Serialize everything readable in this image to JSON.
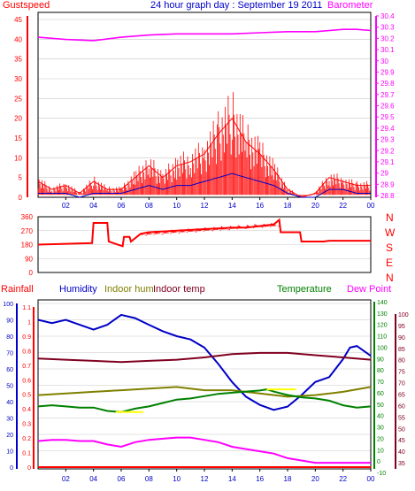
{
  "header": {
    "gust_label": "Gustspeed",
    "title": "24 hour graph day : September 19 2011",
    "baro_label": "Barometer"
  },
  "colors": {
    "gust": "#ff0000",
    "wind": "#0000c8",
    "baro": "#ff00ff",
    "dir": "#ff0000",
    "rain": "#ff0000",
    "humidity": "#0000c8",
    "indoor_hum": "#808000",
    "indoor_temp": "#800020",
    "temperature": "#008000",
    "dew": "#ff00ff",
    "yellow": "#ffff00",
    "grid": "#c8c8c8",
    "axis": "#000000",
    "bg": "#ffffff"
  },
  "compass": [
    "N",
    "W",
    "S",
    "E",
    "N"
  ],
  "bottom_legend": {
    "rainfall": "Rainfall",
    "humidity": "Humidity",
    "indoor_hum": "Indoor hum",
    "indoor_temp": "Indoor temp",
    "temperature": "Temperature",
    "dew_point": "Dew Point"
  },
  "time_ticks": [
    "02",
    "04",
    "06",
    "08",
    "10",
    "12",
    "14",
    "16",
    "18",
    "20",
    "22",
    "00"
  ],
  "chart_data": [
    {
      "type": "line",
      "title": "24 hour graph day : September 19 2011",
      "x_unit": "hours",
      "axes": {
        "left": {
          "label": "Gustspeed",
          "range": [
            0,
            45
          ],
          "ticks": [
            0,
            5,
            10,
            15,
            20,
            25,
            30,
            35,
            40,
            45
          ]
        },
        "right": {
          "label": "Barometer",
          "range": [
            28.8,
            30.4
          ],
          "ticks": [
            "28.8",
            "28.9",
            "29",
            "29.1",
            "29.2",
            "29.3",
            "29.4",
            "29.5",
            "29.6",
            "29.7",
            "29.8",
            "29.9",
            "30",
            "30.1",
            "30.2",
            "30.3",
            "30.4"
          ]
        }
      },
      "series": [
        {
          "name": "Gustspeed",
          "axis": "left",
          "x": [
            0,
            1,
            2,
            3,
            4,
            5,
            6,
            7,
            8,
            9,
            10,
            11,
            12,
            13,
            14,
            15,
            16,
            17,
            18,
            19,
            20,
            21,
            22,
            23,
            24
          ],
          "y": [
            4,
            2,
            3,
            1,
            4,
            2,
            2,
            5,
            8,
            5,
            8,
            9,
            11,
            16,
            20,
            14,
            11,
            7,
            2,
            0,
            1,
            5,
            4,
            3,
            3
          ]
        },
        {
          "name": "Windspeed",
          "axis": "left",
          "x": [
            0,
            1,
            2,
            3,
            4,
            5,
            6,
            7,
            8,
            9,
            10,
            11,
            12,
            13,
            14,
            15,
            16,
            17,
            18,
            19,
            20,
            21,
            22,
            23,
            24
          ],
          "y": [
            1,
            1,
            1,
            0,
            1,
            1,
            1,
            2,
            3,
            2,
            3,
            3,
            4,
            5,
            6,
            5,
            4,
            3,
            1,
            0,
            0,
            2,
            2,
            1,
            1
          ]
        },
        {
          "name": "Barometer",
          "axis": "right",
          "x": [
            0,
            2,
            4,
            6,
            8,
            10,
            12,
            14,
            16,
            18,
            20,
            22,
            23,
            24
          ],
          "y": [
            30.21,
            30.19,
            30.18,
            30.21,
            30.23,
            30.24,
            30.24,
            30.24,
            30.25,
            30.26,
            30.26,
            30.28,
            30.28,
            30.27
          ]
        }
      ]
    },
    {
      "type": "line",
      "title": "",
      "x_unit": "hours",
      "axes": {
        "left": {
          "range": [
            0,
            360
          ],
          "ticks": [
            0,
            90,
            180,
            270,
            360
          ]
        },
        "right": {
          "ticks": [
            "N",
            "W",
            "S",
            "E",
            "N"
          ]
        }
      },
      "series": [
        {
          "name": "Wind direction",
          "x": [
            0,
            2,
            3.9,
            4,
            5,
            5.1,
            6.1,
            6.2,
            6.6,
            6.7,
            7.4,
            8,
            10,
            12,
            14,
            15,
            16,
            17,
            17.4,
            17.5,
            18.9,
            19,
            20.5,
            20.6,
            21,
            24
          ],
          "y": [
            180,
            185,
            190,
            320,
            320,
            200,
            170,
            230,
            230,
            200,
            250,
            260,
            270,
            280,
            290,
            290,
            300,
            310,
            340,
            260,
            260,
            200,
            200,
            200,
            205,
            205
          ]
        }
      ]
    },
    {
      "type": "line",
      "title": "",
      "x_unit": "hours",
      "axes": {
        "rainfall": {
          "label": "Rainfall",
          "range": [
            0,
            1.1
          ],
          "ticks": [
            "0",
            "0.1",
            "0.2",
            "0.3",
            "0.4",
            "0.5",
            "0.6",
            "0.7",
            "0.8",
            "0.9",
            "1",
            "1.1"
          ]
        },
        "humidity": {
          "label": "Humidity",
          "range": [
            0,
            100
          ],
          "ticks": [
            0,
            10,
            20,
            30,
            40,
            50,
            60,
            70,
            80,
            90,
            100
          ]
        },
        "temperature": {
          "label": "Temperature",
          "range": [
            -10,
            140
          ],
          "ticks": [
            -10,
            0,
            10,
            20,
            30,
            40,
            50,
            60,
            70,
            80,
            90,
            100,
            110,
            120,
            130,
            140
          ]
        },
        "dew_point": {
          "label": "Dew Point",
          "range": [
            30,
            100
          ],
          "ticks": [
            35,
            40,
            45,
            50,
            55,
            60,
            65,
            70,
            75,
            80,
            85,
            90,
            95,
            100
          ]
        }
      },
      "series": [
        {
          "name": "Rainfall",
          "axis": "rainfall",
          "x": [
            0,
            24
          ],
          "y": [
            0,
            0
          ]
        },
        {
          "name": "Humidity",
          "axis": "humidity",
          "x": [
            0,
            1,
            2,
            3,
            4,
            5,
            6,
            7,
            8,
            9,
            10,
            11,
            12,
            13,
            14,
            15,
            16,
            17,
            18,
            19,
            20,
            21,
            22,
            22.5,
            23,
            24
          ],
          "y": [
            90,
            88,
            90,
            87,
            84,
            87,
            93,
            91,
            87,
            83,
            80,
            78,
            73,
            63,
            52,
            43,
            38,
            35,
            37,
            44,
            52,
            55,
            66,
            73,
            74,
            68
          ]
        },
        {
          "name": "Indoor hum",
          "axis": "humidity",
          "x": [
            0,
            2,
            4,
            6,
            8,
            10,
            12,
            14,
            16,
            18,
            20,
            22,
            24
          ],
          "y": [
            44,
            45,
            46,
            47,
            48,
            49,
            47,
            47,
            45,
            43,
            44,
            46,
            49
          ]
        },
        {
          "name": "Indoor temp",
          "axis": "temperature",
          "x": [
            0,
            2,
            4,
            6,
            8,
            10,
            12,
            14,
            16,
            18,
            20,
            22,
            24
          ],
          "y": [
            90,
            89,
            88,
            87,
            88,
            89,
            91,
            94,
            95,
            95,
            93,
            91,
            89
          ]
        },
        {
          "name": "Temperature",
          "axis": "temperature",
          "x": [
            0,
            1,
            2,
            3,
            4,
            5,
            6,
            7,
            8,
            9,
            10,
            11,
            12,
            13,
            14,
            15,
            16,
            16.5,
            17,
            18,
            19,
            20,
            21,
            22,
            23,
            24
          ],
          "y": [
            48,
            49,
            48,
            47,
            47,
            44,
            43,
            46,
            48,
            51,
            54,
            55,
            57,
            59,
            60,
            61,
            62,
            63,
            61,
            58,
            56,
            55,
            53,
            49,
            47,
            48
          ]
        },
        {
          "name": "Dew Point",
          "axis": "dew_point",
          "x": [
            0,
            1,
            2,
            3,
            4,
            5,
            6,
            7,
            8,
            9,
            10,
            11,
            12,
            13,
            14,
            15,
            16,
            17,
            18,
            19,
            20,
            21,
            22,
            23,
            24
          ],
          "y": [
            44.5,
            45,
            45,
            44.5,
            44.5,
            43,
            42,
            44,
            45,
            45.5,
            46,
            46,
            45,
            44,
            42,
            41,
            40,
            39,
            37,
            36,
            35,
            35,
            35,
            35,
            35
          ]
        }
      ]
    }
  ]
}
